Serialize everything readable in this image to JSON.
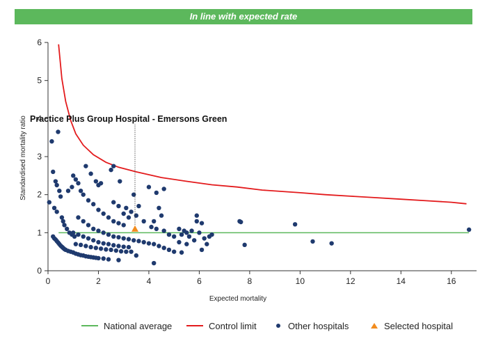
{
  "banner": {
    "text": "In line with expected rate",
    "color": "#5cb85c"
  },
  "chart_data": {
    "type": "scatter",
    "xlabel": "Expected mortality",
    "ylabel": "Standardised mortality ratio",
    "xlim": [
      0,
      17
    ],
    "ylim": [
      0,
      6
    ],
    "x_ticks": [
      0,
      2,
      4,
      6,
      8,
      10,
      12,
      14,
      16
    ],
    "y_ticks": [
      0,
      1,
      2,
      3,
      4,
      5,
      6
    ],
    "grid": false,
    "legend_position": "bottom",
    "annotation": {
      "text": "Practice Plus Group Hospital - Emersons Green",
      "x": 3.45,
      "y": 1.1
    },
    "colors": {
      "national": "#5cb85c",
      "control": "#e31a1c",
      "other": "#1f3a6e",
      "selected": "#f28c1e"
    },
    "national_average": {
      "name": "National average",
      "y": 1
    },
    "control_limit": {
      "name": "Control limit",
      "points": [
        [
          0.42,
          5.95
        ],
        [
          0.55,
          5.05
        ],
        [
          0.7,
          4.45
        ],
        [
          0.9,
          3.95
        ],
        [
          1.1,
          3.6
        ],
        [
          1.4,
          3.3
        ],
        [
          1.8,
          3.05
        ],
        [
          2.3,
          2.85
        ],
        [
          2.8,
          2.72
        ],
        [
          3.5,
          2.6
        ],
        [
          4.5,
          2.45
        ],
        [
          5.5,
          2.35
        ],
        [
          6.5,
          2.26
        ],
        [
          7.5,
          2.2
        ],
        [
          8.5,
          2.12
        ],
        [
          10,
          2.05
        ],
        [
          11,
          2.0
        ],
        [
          12,
          1.96
        ],
        [
          13,
          1.92
        ],
        [
          14,
          1.88
        ],
        [
          15,
          1.84
        ],
        [
          16,
          1.8
        ],
        [
          16.6,
          1.76
        ]
      ]
    },
    "selected_hospital": {
      "name": "Selected hospital",
      "x": 3.45,
      "y": 1.1
    },
    "other_hospitals": {
      "name": "Other hospitals",
      "points": [
        [
          0.15,
          3.4
        ],
        [
          0.4,
          3.65
        ],
        [
          0.2,
          2.6
        ],
        [
          0.3,
          2.35
        ],
        [
          0.35,
          2.25
        ],
        [
          0.45,
          2.1
        ],
        [
          0.5,
          1.95
        ],
        [
          0.05,
          1.8
        ],
        [
          0.25,
          1.65
        ],
        [
          0.35,
          1.55
        ],
        [
          0.55,
          1.4
        ],
        [
          0.6,
          1.3
        ],
        [
          0.65,
          1.2
        ],
        [
          0.75,
          1.1
        ],
        [
          0.85,
          1.0
        ],
        [
          0.95,
          0.95
        ],
        [
          1.05,
          0.9
        ],
        [
          0.2,
          0.9
        ],
        [
          0.25,
          0.85
        ],
        [
          0.3,
          0.82
        ],
        [
          0.35,
          0.78
        ],
        [
          0.4,
          0.74
        ],
        [
          0.45,
          0.7
        ],
        [
          0.5,
          0.66
        ],
        [
          0.55,
          0.63
        ],
        [
          0.6,
          0.6
        ],
        [
          0.65,
          0.57
        ],
        [
          0.7,
          0.55
        ],
        [
          0.8,
          0.52
        ],
        [
          0.9,
          0.5
        ],
        [
          1.0,
          0.48
        ],
        [
          1.1,
          0.45
        ],
        [
          1.2,
          0.43
        ],
        [
          1.3,
          0.41
        ],
        [
          1.4,
          0.4
        ],
        [
          1.5,
          0.38
        ],
        [
          1.6,
          0.37
        ],
        [
          1.7,
          0.36
        ],
        [
          1.8,
          0.35
        ],
        [
          1.9,
          0.34
        ],
        [
          2.0,
          0.33
        ],
        [
          2.2,
          0.32
        ],
        [
          2.4,
          0.3
        ],
        [
          2.8,
          0.28
        ],
        [
          1.0,
          2.5
        ],
        [
          1.1,
          2.4
        ],
        [
          1.2,
          2.3
        ],
        [
          0.95,
          2.2
        ],
        [
          0.8,
          2.1
        ],
        [
          1.3,
          2.1
        ],
        [
          1.5,
          2.75
        ],
        [
          1.7,
          2.55
        ],
        [
          1.9,
          2.35
        ],
        [
          2.0,
          2.25
        ],
        [
          2.1,
          2.3
        ],
        [
          2.5,
          2.65
        ],
        [
          2.6,
          2.75
        ],
        [
          2.85,
          2.35
        ],
        [
          1.4,
          2.0
        ],
        [
          1.6,
          1.85
        ],
        [
          1.8,
          1.75
        ],
        [
          2.0,
          1.6
        ],
        [
          2.2,
          1.5
        ],
        [
          2.4,
          1.4
        ],
        [
          2.6,
          1.3
        ],
        [
          2.8,
          1.25
        ],
        [
          3.0,
          1.2
        ],
        [
          3.1,
          1.65
        ],
        [
          3.3,
          1.55
        ],
        [
          3.5,
          1.45
        ],
        [
          3.4,
          2.0
        ],
        [
          3.6,
          1.7
        ],
        [
          3.8,
          1.3
        ],
        [
          4.0,
          2.2
        ],
        [
          4.3,
          2.05
        ],
        [
          4.6,
          2.15
        ],
        [
          4.4,
          1.65
        ],
        [
          4.5,
          1.45
        ],
        [
          4.2,
          1.3
        ],
        [
          4.1,
          1.15
        ],
        [
          4.3,
          1.1
        ],
        [
          4.6,
          1.05
        ],
        [
          4.8,
          0.95
        ],
        [
          5.0,
          0.9
        ],
        [
          1.2,
          1.4
        ],
        [
          1.4,
          1.3
        ],
        [
          1.6,
          1.2
        ],
        [
          1.8,
          1.1
        ],
        [
          2.0,
          1.05
        ],
        [
          2.2,
          1.0
        ],
        [
          2.4,
          0.95
        ],
        [
          2.6,
          0.9
        ],
        [
          2.8,
          0.88
        ],
        [
          3.0,
          0.85
        ],
        [
          3.2,
          0.83
        ],
        [
          3.4,
          0.8
        ],
        [
          3.6,
          0.78
        ],
        [
          3.8,
          0.75
        ],
        [
          4.0,
          0.72
        ],
        [
          4.2,
          0.7
        ],
        [
          4.4,
          0.65
        ],
        [
          4.6,
          0.6
        ],
        [
          4.8,
          0.55
        ],
        [
          5.0,
          0.5
        ],
        [
          5.3,
          0.48
        ],
        [
          4.2,
          0.2
        ],
        [
          3.5,
          0.4
        ],
        [
          1.0,
          1.0
        ],
        [
          1.2,
          0.95
        ],
        [
          1.4,
          0.9
        ],
        [
          1.6,
          0.85
        ],
        [
          1.8,
          0.8
        ],
        [
          2.0,
          0.75
        ],
        [
          2.2,
          0.72
        ],
        [
          2.4,
          0.7
        ],
        [
          2.6,
          0.67
        ],
        [
          2.8,
          0.65
        ],
        [
          3.0,
          0.63
        ],
        [
          3.2,
          0.62
        ],
        [
          1.1,
          0.7
        ],
        [
          1.3,
          0.68
        ],
        [
          1.5,
          0.65
        ],
        [
          1.7,
          0.62
        ],
        [
          1.9,
          0.6
        ],
        [
          2.1,
          0.58
        ],
        [
          2.3,
          0.56
        ],
        [
          2.5,
          0.55
        ],
        [
          2.7,
          0.53
        ],
        [
          2.9,
          0.51
        ],
        [
          3.1,
          0.5
        ],
        [
          3.3,
          0.5
        ],
        [
          2.6,
          1.8
        ],
        [
          2.8,
          1.7
        ],
        [
          3.0,
          1.5
        ],
        [
          3.2,
          1.4
        ],
        [
          5.2,
          1.1
        ],
        [
          5.4,
          1.05
        ],
        [
          5.5,
          1.0
        ],
        [
          5.3,
          0.95
        ],
        [
          5.6,
          0.9
        ],
        [
          5.7,
          1.05
        ],
        [
          5.9,
          1.45
        ],
        [
          5.9,
          1.3
        ],
        [
          6.0,
          1.0
        ],
        [
          6.1,
          1.25
        ],
        [
          6.2,
          0.85
        ],
        [
          6.3,
          0.7
        ],
        [
          6.1,
          0.55
        ],
        [
          6.4,
          0.9
        ],
        [
          5.2,
          0.75
        ],
        [
          5.5,
          0.7
        ],
        [
          5.8,
          0.8
        ],
        [
          6.5,
          0.95
        ],
        [
          7.6,
          1.3
        ],
        [
          7.65,
          1.28
        ],
        [
          7.8,
          0.68
        ],
        [
          9.8,
          1.22
        ],
        [
          10.5,
          0.77
        ],
        [
          11.25,
          0.72
        ],
        [
          16.7,
          1.08
        ]
      ]
    }
  },
  "legend": {
    "national": "National average",
    "control": "Control limit",
    "other": "Other hospitals",
    "selected": "Selected hospital"
  }
}
